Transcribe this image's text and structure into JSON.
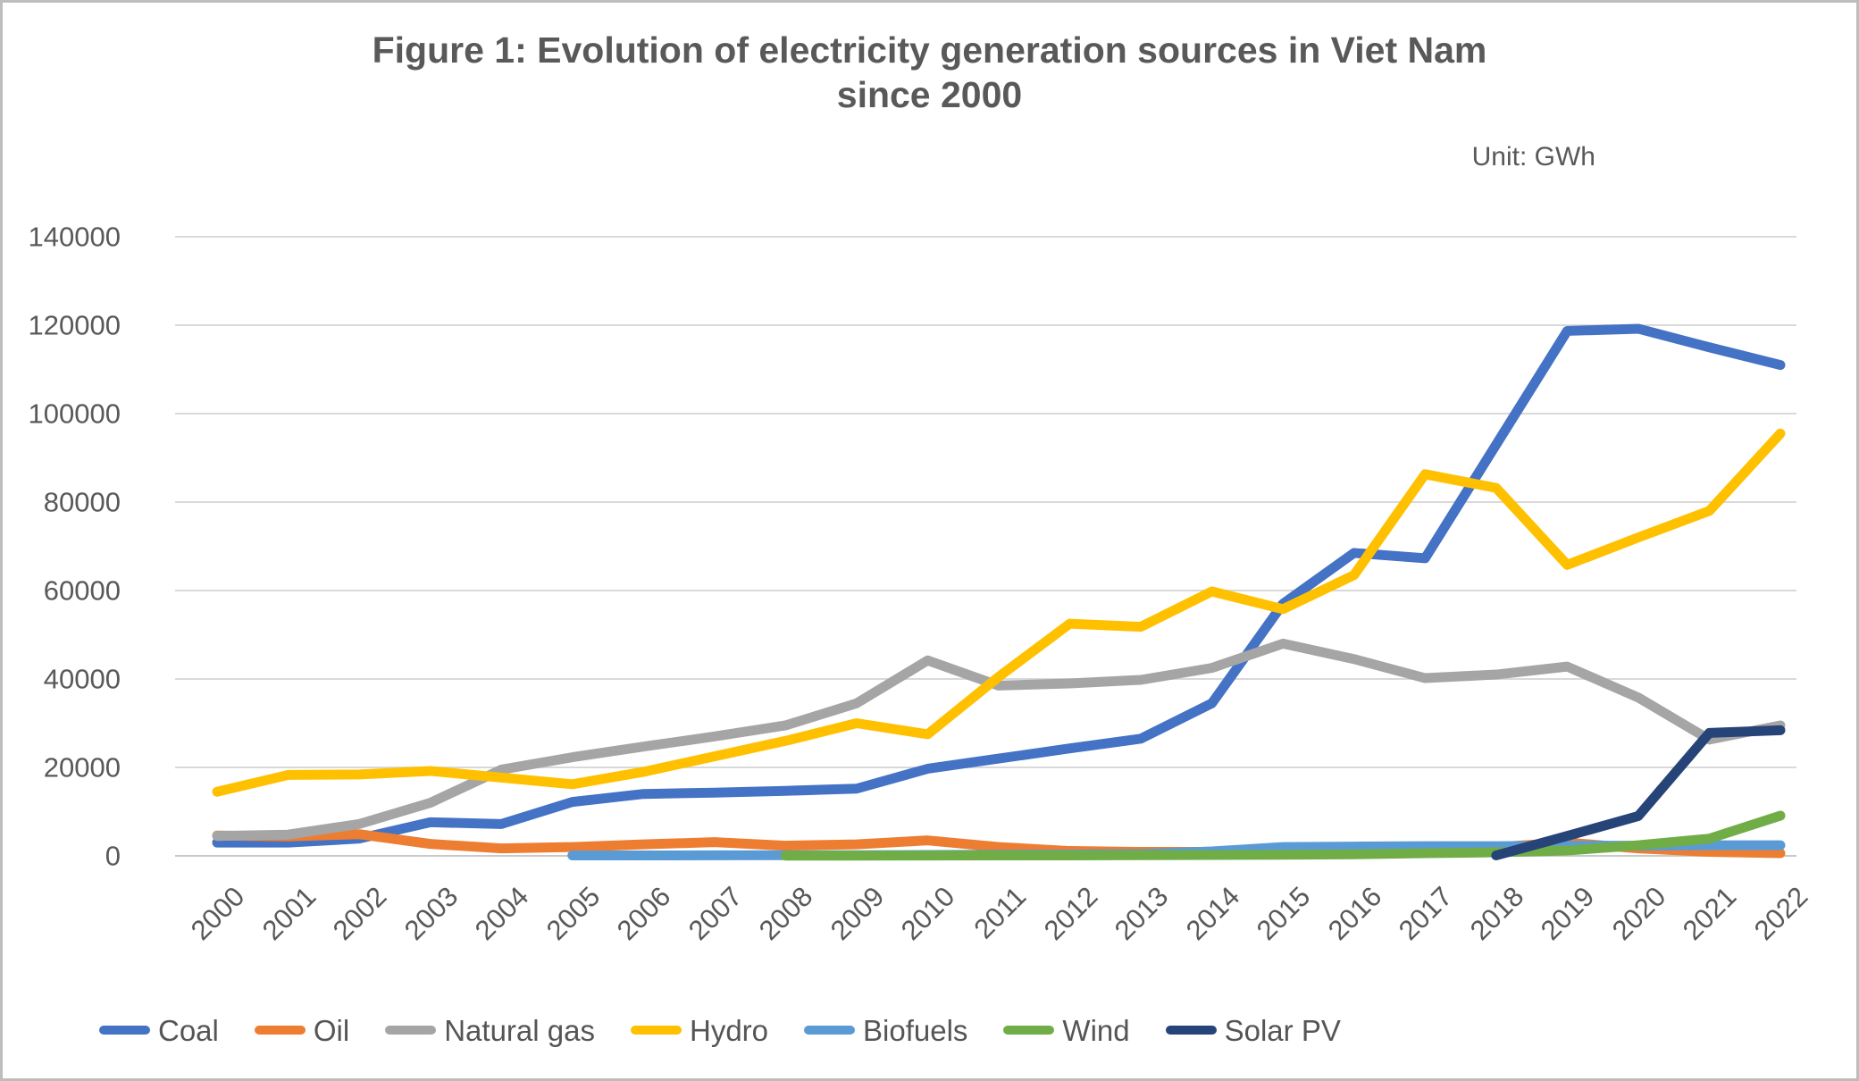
{
  "header": {
    "title_line1": "Figure 1: Evolution of electricity generation sources in Viet Nam",
    "title_line2": "since 2000",
    "unit": "Unit: GWh"
  },
  "chart_data": {
    "type": "line",
    "title": "Figure 1: Evolution of electricity generation sources in Viet Nam since 2000",
    "unit_label": "Unit: GWh",
    "xlabel": "",
    "ylabel": "",
    "ylim": [
      0,
      140000
    ],
    "y_ticks": [
      0,
      20000,
      40000,
      60000,
      80000,
      100000,
      120000,
      140000
    ],
    "grid": "horizontal",
    "legend_position": "bottom",
    "categories": [
      2000,
      2001,
      2002,
      2003,
      2004,
      2005,
      2006,
      2007,
      2008,
      2009,
      2010,
      2011,
      2012,
      2013,
      2014,
      2015,
      2016,
      2017,
      2018,
      2019,
      2020,
      2021,
      2022
    ],
    "series": [
      {
        "name": "Coal",
        "color": "#4472C4",
        "values": [
          3000,
          3000,
          3900,
          7600,
          7200,
          12200,
          14000,
          14300,
          14700,
          15200,
          19700,
          22000,
          24300,
          26500,
          34500,
          57000,
          68500,
          67300,
          93000,
          118700,
          119200,
          115000,
          111000
        ]
      },
      {
        "name": "Oil",
        "color": "#ED7D31",
        "values": [
          4600,
          4400,
          4900,
          2700,
          1700,
          2000,
          2600,
          3100,
          2300,
          2600,
          3500,
          2000,
          1100,
          900,
          900,
          1400,
          1600,
          1500,
          2000,
          3000,
          1700,
          900,
          600
        ]
      },
      {
        "name": "Natural gas",
        "color": "#A5A5A5",
        "values": [
          4500,
          4800,
          7200,
          12000,
          19500,
          22300,
          24700,
          27000,
          29500,
          34500,
          44200,
          38500,
          39000,
          39800,
          42500,
          48000,
          44500,
          40200,
          41000,
          42800,
          35800,
          26300,
          29500
        ]
      },
      {
        "name": "Hydro",
        "color": "#FFC000",
        "values": [
          14500,
          18300,
          18400,
          19200,
          17700,
          16200,
          19000,
          22500,
          26000,
          30000,
          27500,
          40500,
          52500,
          51800,
          59800,
          55800,
          63500,
          86300,
          83200,
          65800,
          72000,
          78000,
          95500
        ]
      },
      {
        "name": "Biofuels",
        "color": "#5B9BD5",
        "values": [
          null,
          null,
          null,
          null,
          null,
          100,
          100,
          120,
          150,
          150,
          200,
          250,
          300,
          400,
          1000,
          2000,
          2100,
          2200,
          2200,
          2300,
          2300,
          2400,
          2400
        ]
      },
      {
        "name": "Wind",
        "color": "#70AD47",
        "values": [
          null,
          null,
          null,
          null,
          null,
          null,
          null,
          null,
          50,
          60,
          80,
          90,
          100,
          150,
          200,
          250,
          350,
          600,
          800,
          1200,
          2400,
          3900,
          9100
        ]
      },
      {
        "name": "Solar PV",
        "color": "#264478",
        "values": [
          null,
          null,
          null,
          null,
          null,
          null,
          null,
          null,
          null,
          null,
          null,
          null,
          null,
          null,
          null,
          null,
          null,
          null,
          100,
          4500,
          9000,
          27800,
          28400
        ]
      }
    ]
  }
}
